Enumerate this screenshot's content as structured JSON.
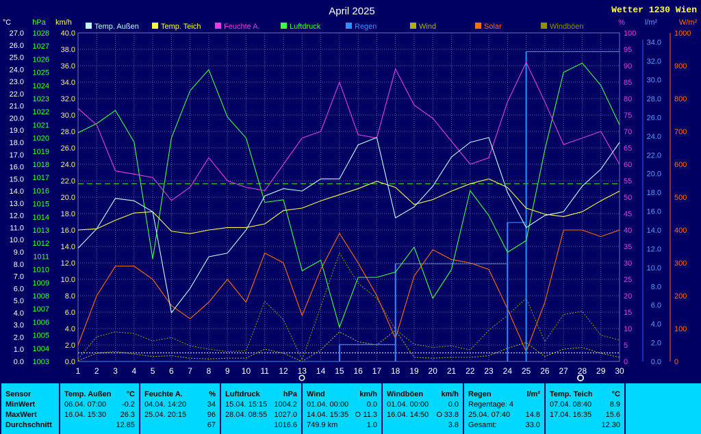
{
  "header": {
    "title": "April 2025",
    "station": "Wetter 1230 Wien"
  },
  "axis_units": {
    "temp": "°C",
    "press": "hPa",
    "wind": "km/h",
    "hum": "%",
    "rain": "l/m²",
    "solar": "W/m²"
  },
  "axis_ticks": {
    "temp": [
      "0.0",
      "1.0",
      "2.0",
      "3.0",
      "4.0",
      "5.0",
      "6.0",
      "7.0",
      "8.0",
      "9.0",
      "10.0",
      "11.0",
      "12.0",
      "13.0",
      "14.0",
      "15.0",
      "16.0",
      "17.0",
      "18.0",
      "19.0",
      "20.0",
      "21.0",
      "22.0",
      "23.0",
      "24.0",
      "25.0",
      "26.0",
      "27.0"
    ],
    "press": [
      "1003",
      "1004",
      "1005",
      "1006",
      "1007",
      "1008",
      "1009",
      "1010",
      "1011",
      "1012",
      "1013",
      "1014",
      "1015",
      "1016",
      "1017",
      "1018",
      "1019",
      "1020",
      "1021",
      "1022",
      "1023",
      "1024",
      "1025",
      "1026",
      "1027",
      "1028"
    ],
    "wind": [
      "0.0",
      "2.0",
      "4.0",
      "6.0",
      "8.0",
      "10.0",
      "12.0",
      "14.0",
      "16.0",
      "18.0",
      "20.0",
      "22.0",
      "24.0",
      "26.0",
      "28.0",
      "30.0",
      "32.0",
      "34.0",
      "36.0",
      "38.0",
      "40.0"
    ],
    "hum": [
      "0",
      "5",
      "10",
      "15",
      "20",
      "25",
      "30",
      "35",
      "40",
      "45",
      "50",
      "55",
      "60",
      "65",
      "70",
      "75",
      "80",
      "85",
      "90",
      "95",
      "100"
    ],
    "rain": [
      "0.0",
      "2.0",
      "4.0",
      "6.0",
      "8.0",
      "10.0",
      "12.0",
      "14.0",
      "16.0",
      "18.0",
      "20.0",
      "22.0",
      "24.0",
      "26.0",
      "28.0",
      "30.0",
      "32.0",
      "34.0"
    ],
    "solar": [
      "0",
      "100",
      "200",
      "300",
      "400",
      "500",
      "600",
      "700",
      "800",
      "900",
      "1000"
    ]
  },
  "chart_data": {
    "type": "line",
    "title": "April 2025",
    "x": [
      1,
      2,
      3,
      4,
      5,
      6,
      7,
      8,
      9,
      10,
      11,
      12,
      13,
      14,
      15,
      16,
      17,
      18,
      19,
      20,
      21,
      22,
      23,
      24,
      25,
      26,
      27,
      28,
      29,
      30
    ],
    "grid": true,
    "legend_position": "top",
    "reference_line": {
      "value": 14.6,
      "axis": "temp",
      "color": "#40c040"
    },
    "series": [
      {
        "name": "Temp. Außen",
        "axis": "temp",
        "color": "#c0ffff",
        "values": [
          9.3,
          10.9,
          13.4,
          13.2,
          12.3,
          4.0,
          6.0,
          8.6,
          8.9,
          10.8,
          13.6,
          14.2,
          14.0,
          15.0,
          15.0,
          17.8,
          18.4,
          11.8,
          12.7,
          14.4,
          16.8,
          18.0,
          18.4,
          13.9,
          11.0,
          12.0,
          12.3,
          14.4,
          15.8,
          18.0
        ]
      },
      {
        "name": "Temp. Teich",
        "axis": "temp",
        "color": "#ffff40",
        "values": [
          10.8,
          10.9,
          11.6,
          12.2,
          12.3,
          10.7,
          10.5,
          10.8,
          11.0,
          11.0,
          11.3,
          12.4,
          12.6,
          13.2,
          13.7,
          14.2,
          14.8,
          14.3,
          12.9,
          13.3,
          14.0,
          14.6,
          15.0,
          14.3,
          12.6,
          12.1,
          11.9,
          12.3,
          13.2,
          14.0
        ]
      },
      {
        "name": "Feuchte A.",
        "axis": "hum",
        "color": "#e040e0",
        "values": [
          77,
          72,
          58,
          57,
          56,
          49,
          53,
          62,
          55,
          53,
          52,
          60,
          68,
          70,
          85,
          69,
          68,
          89,
          78,
          74,
          67,
          60,
          62,
          79,
          91,
          79,
          66,
          68,
          70,
          60
        ]
      },
      {
        "name": "Luftdruck",
        "axis": "press",
        "color": "#40ff40",
        "values": [
          1020.4,
          1021.1,
          1022.1,
          1019.7,
          1010.8,
          1020.0,
          1023.6,
          1025.2,
          1021.6,
          1020.0,
          1015.1,
          1015.3,
          1009.9,
          1010.7,
          1005.6,
          1009.4,
          1009.4,
          1009.8,
          1011.7,
          1007.8,
          1010.0,
          1016.0,
          1014.1,
          1011.3,
          1012.2,
          1019.1,
          1025.0,
          1025.7,
          1024.0,
          1021.0
        ]
      },
      {
        "name": "Regen",
        "axis": "rain",
        "type": "step",
        "color": "#3090ff",
        "values": [
          0,
          0,
          0,
          0,
          0,
          0,
          0,
          0,
          0,
          0,
          0,
          0,
          0,
          0,
          1.8,
          1.8,
          1.8,
          10.4,
          10.4,
          10.4,
          10.4,
          10.4,
          10.4,
          14.8,
          33.0,
          33.0,
          33.0,
          33.0,
          33.0,
          33.0
        ]
      },
      {
        "name": "Wind",
        "axis": "wind",
        "style": "dotted",
        "color": "#b0b000",
        "values": [
          0.1,
          1.0,
          1.2,
          0.9,
          0.6,
          0.7,
          0.4,
          0.3,
          0.4,
          0.4,
          1.5,
          1.0,
          0.0,
          1.4,
          3.6,
          2.4,
          2.0,
          3.8,
          0.5,
          0.4,
          0.5,
          0.5,
          0.7,
          1.6,
          2.3,
          0.6,
          1.5,
          1.7,
          1.0,
          0.5
        ]
      },
      {
        "name": "Solar",
        "axis": "solar",
        "color": "#ff7000",
        "values": [
          50,
          200,
          290,
          290,
          250,
          170,
          130,
          180,
          250,
          180,
          330,
          300,
          140,
          280,
          390,
          300,
          200,
          70,
          260,
          340,
          310,
          300,
          280,
          160,
          30,
          180,
          400,
          400,
          380,
          400
        ]
      },
      {
        "name": "Windböen",
        "axis": "wind",
        "style": "dotted",
        "color": "#909000",
        "values": [
          0.3,
          3.0,
          3.6,
          3.4,
          2.5,
          2.9,
          1.9,
          1.5,
          1.2,
          1.3,
          7.3,
          5.1,
          0.2,
          6.7,
          13.2,
          9.5,
          7.7,
          3.9,
          2.1,
          1.7,
          1.9,
          1.4,
          3.8,
          5.6,
          7.7,
          2.4,
          5.7,
          6.1,
          3.2,
          2.6
        ]
      }
    ]
  },
  "stats": {
    "sensor": {
      "header": "Sensor",
      "rows": [
        "MinWert",
        "MaxWert",
        "Durchschnitt"
      ]
    },
    "temp_aussen": {
      "header": "Temp. Außen",
      "unit": "°C",
      "min_time": "06.04.  07:00",
      "min_val": "-0.2",
      "max_time": "16.04.  15:30",
      "max_val": "26.3",
      "avg": "12.85"
    },
    "feuchte": {
      "header": "Feuchte A.",
      "unit": "%",
      "min_time": "04.04.  14:20",
      "min_val": "34",
      "max_time": "25.04.  20:15",
      "max_val": "96",
      "avg": "67"
    },
    "luftdruck": {
      "header": "Luftdruck",
      "unit": "hPa",
      "min_time": "15.04.  15:15",
      "min_val": "1004.2",
      "max_time": "28.04.  08:55",
      "max_val": "1027.0",
      "avg": "1016.6"
    },
    "wind": {
      "header": "Wind",
      "unit": "km/h",
      "min_time": "01.04.  00:00",
      "min_val": "0.0",
      "max_time": "14.04.  15:35",
      "max_dir": "O",
      "max_val": "11.3",
      "dist": "749.9 km",
      "avg": "1.0"
    },
    "windboen": {
      "header": "Windböen",
      "unit": "km/h",
      "min_time": "01.04.  00:00",
      "min_val": "0.0",
      "max_time": "16.04.  14:50",
      "max_dir": "O",
      "max_val": "33.8",
      "avg": "3.8"
    },
    "regen": {
      "header": "Regen",
      "unit": "l/m²",
      "row1": "Regentage: 4",
      "max_time": "25.04.  07:40",
      "max_val": "14.8",
      "total_label": "Gesamt:",
      "total_val": "33.0"
    },
    "temp_teich": {
      "header": "Temp. Teich",
      "unit": "°C",
      "min_time": "07.04.  08:40",
      "min_val": "8.9",
      "max_time": "17.04.  16:35",
      "max_val": "15.6",
      "avg": "12.30"
    }
  }
}
